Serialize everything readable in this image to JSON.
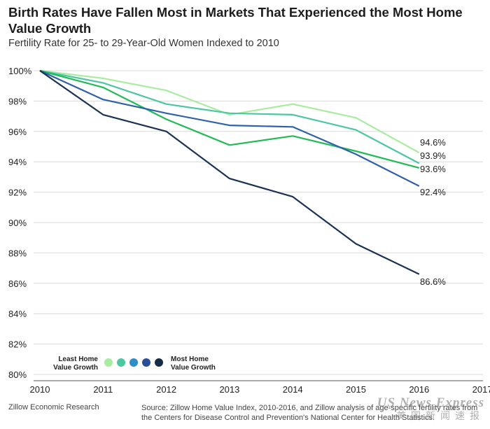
{
  "header": {
    "title": "Birth Rates Have Fallen Most in Markets That Experienced the Most Home Value Growth",
    "subtitle": "Fertility Rate for 25- to 29-Year-Old Women Indexed to 2010"
  },
  "chart_data": {
    "type": "line",
    "x": [
      2010,
      2011,
      2012,
      2013,
      2014,
      2015,
      2016
    ],
    "xticks": [
      "2010",
      "2011",
      "2012",
      "2013",
      "2014",
      "2015",
      "2016",
      "2017"
    ],
    "xlim": [
      2010,
      2017
    ],
    "yticks": [
      "80%",
      "82%",
      "84%",
      "86%",
      "88%",
      "90%",
      "92%",
      "94%",
      "96%",
      "98%",
      "100%"
    ],
    "ylim": [
      80,
      100
    ],
    "grid": "horizontal",
    "series": [
      {
        "color": "#a8ec9f",
        "values": [
          100,
          99.5,
          98.7,
          97.1,
          97.8,
          96.9,
          94.6
        ],
        "end_label": "94.6%"
      },
      {
        "color": "#4dc6a4",
        "values": [
          100,
          99.2,
          97.8,
          97.2,
          97.1,
          96.1,
          93.9
        ],
        "end_label": "93.9%"
      },
      {
        "color": "#22bb55",
        "values": [
          100,
          98.9,
          96.8,
          95.1,
          95.7,
          94.7,
          93.6
        ],
        "end_label": "93.6%"
      },
      {
        "color": "#2f61aa",
        "values": [
          100,
          98.1,
          97.2,
          96.4,
          96.3,
          94.5,
          92.4
        ],
        "end_label": "92.4%"
      },
      {
        "color": "#1a3355",
        "values": [
          100,
          97.1,
          96.0,
          92.9,
          91.7,
          88.6,
          86.6
        ],
        "end_label": "86.6%"
      }
    ],
    "legend": {
      "placement": "bottom-left",
      "left_label_line1": "Least Home",
      "left_label_line2": "Value Growth",
      "right_label_line1": "Most Home",
      "right_label_line2": "Value Growth",
      "dot_colors": [
        "#a8ec9f",
        "#4dc6a4",
        "#2f8ec6",
        "#2a4d96",
        "#152a45"
      ]
    }
  },
  "footer": {
    "credit": "Zillow Economic Research",
    "source": "Source: Zillow Home Value Index, 2010-2016, and Zillow analysis of age-specific fertility rates from the Centers for Disease Control and Prevention's National Center for Health Statistics."
  },
  "watermark": {
    "line1": "US News Express",
    "line2": "美国新闻速报"
  }
}
